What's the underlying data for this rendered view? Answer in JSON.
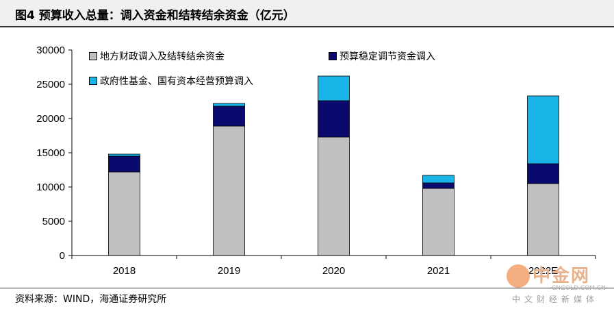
{
  "header": {
    "title": "图4  预算收入总量：调入资金和结转结余资金（亿元）"
  },
  "footer": {
    "source": "资料来源：WIND，海通证券研究所"
  },
  "watermark": {
    "cn": "中金网",
    "en": "CNGOLD.COM.CN",
    "sub": "中文财经新媒体"
  },
  "chart_data": {
    "type": "bar",
    "stacked": true,
    "categories": [
      "2018",
      "2019",
      "2020",
      "2021",
      "2022E"
    ],
    "series": [
      {
        "name": "地方财政调入及结转结余资金",
        "color": "#c0c0c0",
        "values": [
          12200,
          18900,
          17300,
          9800,
          10500
        ]
      },
      {
        "name": "预算稳定调节资金调入",
        "color": "#0a0a6e",
        "values": [
          2300,
          2900,
          5300,
          800,
          2900
        ]
      },
      {
        "name": "政府性基金、国有资本经营预算调入",
        "color": "#18b4e8",
        "values": [
          300,
          400,
          3600,
          1100,
          9900
        ]
      }
    ],
    "ylim": [
      0,
      30000
    ],
    "yticks": [
      0,
      5000,
      10000,
      15000,
      20000,
      25000,
      30000
    ],
    "grid": false,
    "legend_position": "top"
  },
  "colors": {
    "axis": "#000000",
    "bar_edge": "#000000"
  }
}
